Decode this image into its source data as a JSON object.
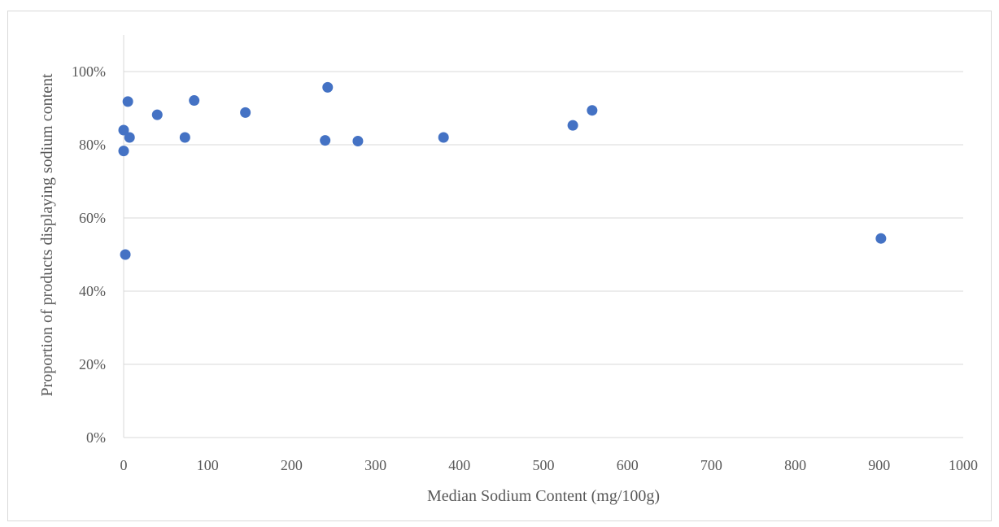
{
  "chart_data": {
    "type": "scatter",
    "title": "",
    "xlabel": "Median Sodium Content (mg/100g)",
    "ylabel": "Proportion of products displaying sodium content",
    "xlim": [
      0,
      1000
    ],
    "ylim": [
      0,
      1.1
    ],
    "x_ticks": [
      0,
      100,
      200,
      300,
      400,
      500,
      600,
      700,
      800,
      900,
      1000
    ],
    "x_tick_labels": [
      "0",
      "100",
      "200",
      "300",
      "400",
      "500",
      "600",
      "700",
      "800",
      "900",
      "1000"
    ],
    "y_ticks": [
      0,
      0.2,
      0.4,
      0.6,
      0.8,
      1.0
    ],
    "y_tick_labels": [
      "0%",
      "20%",
      "40%",
      "60%",
      "80%",
      "100%"
    ],
    "grid": "horizontal",
    "legend": "none",
    "marker_color": "#4472c4",
    "grid_color": "#d9d9d9",
    "text_color": "#595959",
    "series": [
      {
        "points": [
          {
            "x": 0,
            "y": 0.84
          },
          {
            "x": 0,
            "y": 0.783
          },
          {
            "x": 2,
            "y": 0.5
          },
          {
            "x": 5,
            "y": 0.918
          },
          {
            "x": 7,
            "y": 0.82
          },
          {
            "x": 40,
            "y": 0.882
          },
          {
            "x": 73,
            "y": 0.82
          },
          {
            "x": 84,
            "y": 0.921
          },
          {
            "x": 145,
            "y": 0.888
          },
          {
            "x": 240,
            "y": 0.812
          },
          {
            "x": 243,
            "y": 0.957
          },
          {
            "x": 279,
            "y": 0.81
          },
          {
            "x": 381,
            "y": 0.82
          },
          {
            "x": 535,
            "y": 0.853
          },
          {
            "x": 558,
            "y": 0.894
          },
          {
            "x": 902,
            "y": 0.544
          }
        ]
      }
    ]
  }
}
